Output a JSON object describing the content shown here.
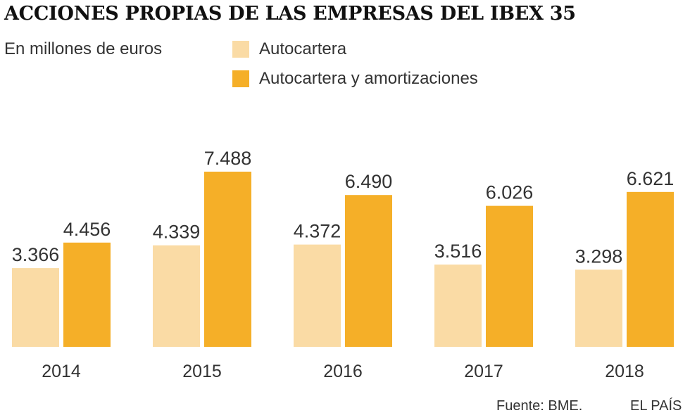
{
  "header": {
    "title": "ACCIONES PROPIAS DE LAS EMPRESAS DEL IBEX 35",
    "subtitle": "En millones de euros"
  },
  "legend": [
    {
      "label": "Autocartera",
      "color": "#fadba5"
    },
    {
      "label": "Autocartera y amortizaciones",
      "color": "#f5af28"
    }
  ],
  "footer": {
    "source": "Fuente: BME.",
    "brand": "EL PAÍS"
  },
  "chart_data": {
    "type": "bar",
    "categories": [
      "2014",
      "2015",
      "2016",
      "2017",
      "2018"
    ],
    "series": [
      {
        "name": "Autocartera",
        "values": [
          3366,
          4339,
          4372,
          3516,
          3298
        ],
        "labels": [
          "3.366",
          "4.339",
          "4.372",
          "3.516",
          "3.298"
        ],
        "color": "#fadba5"
      },
      {
        "name": "Autocartera y amortizaciones",
        "values": [
          4456,
          7488,
          6490,
          6026,
          6621
        ],
        "labels": [
          "4.456",
          "7.488",
          "6.490",
          "6.026",
          "6.621"
        ],
        "color": "#f5af28"
      }
    ],
    "title": "ACCIONES PROPIAS DE LAS EMPRESAS DEL IBEX 35",
    "ylabel": "En millones de euros",
    "ylim": [
      0,
      7488
    ],
    "grid": false,
    "legend_position": "top"
  }
}
